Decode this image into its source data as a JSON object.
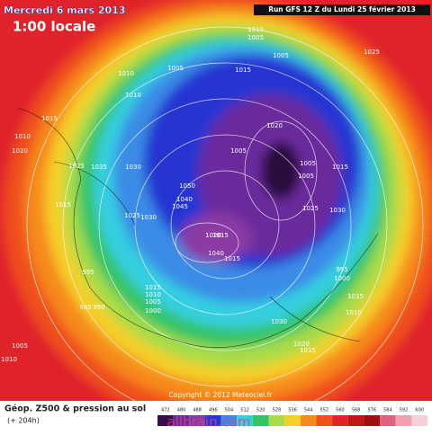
{
  "header": {
    "date": "Mercredi 6 mars 2013",
    "local_time": "1:00 locale",
    "run": "Run GFS 12 Z du Lundi 25 février 2013"
  },
  "footer": {
    "title": "Géop. Z500 & pression au sol",
    "lead_time": "(+ 204h)",
    "copyright": "Copyright © 2012 Meteociel.fr",
    "watermark": "allbrain.com"
  },
  "scale": {
    "labels": [
      "472",
      "480",
      "488",
      "496",
      "504",
      "512",
      "520",
      "528",
      "536",
      "544",
      "552",
      "560",
      "568",
      "576",
      "584",
      "592",
      "600"
    ]
  },
  "isobar_labels": [
    "1010",
    "1005",
    "1015",
    "1010",
    "1005",
    "1005",
    "1010",
    "1015",
    "1010",
    "1025",
    "1020",
    "1030",
    "1035",
    "1050",
    "1040",
    "1045",
    "1025",
    "1030",
    "1020",
    "1040",
    "1015",
    "1005",
    "995",
    "1015",
    "1010",
    "1005",
    "985",
    "990",
    "1000",
    "1030",
    "1025",
    "1015",
    "1020",
    "995",
    "1000",
    "1005",
    "1005",
    "1015",
    "1010",
    "1030",
    "1020",
    "1015",
    "1010",
    "1005",
    "1025",
    "1015",
    "1015"
  ]
}
